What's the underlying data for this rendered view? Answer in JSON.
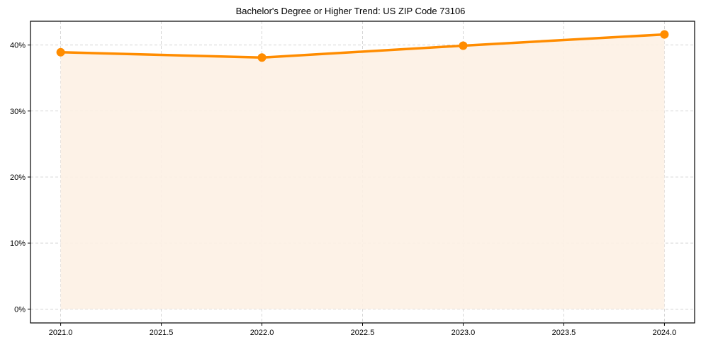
{
  "chart_data": {
    "type": "line",
    "title": "Bachelor's Degree or Higher Trend: US ZIP Code 73106",
    "xlabel": "",
    "ylabel": "",
    "x": [
      2021,
      2022,
      2023,
      2024
    ],
    "series": [
      {
        "name": "Bachelor's Degree or Higher",
        "values": [
          38.9,
          38.1,
          39.9,
          41.6
        ],
        "color": "#ff8c00",
        "fill": "#fdf1e4"
      }
    ],
    "xticks": [
      "2021.0",
      "2021.5",
      "2022.0",
      "2022.5",
      "2023.0",
      "2023.5",
      "2024.0"
    ],
    "xtick_values": [
      2021.0,
      2021.5,
      2022.0,
      2022.5,
      2023.0,
      2023.5,
      2024.0
    ],
    "yticks": [
      "0%",
      "10%",
      "20%",
      "30%",
      "40%"
    ],
    "ytick_values": [
      0,
      10,
      20,
      30,
      40
    ],
    "xlim": [
      2020.85,
      2024.15
    ],
    "ylim": [
      -2.1,
      43.6
    ],
    "grid": true,
    "grid_style": "dashed",
    "legend": null
  }
}
